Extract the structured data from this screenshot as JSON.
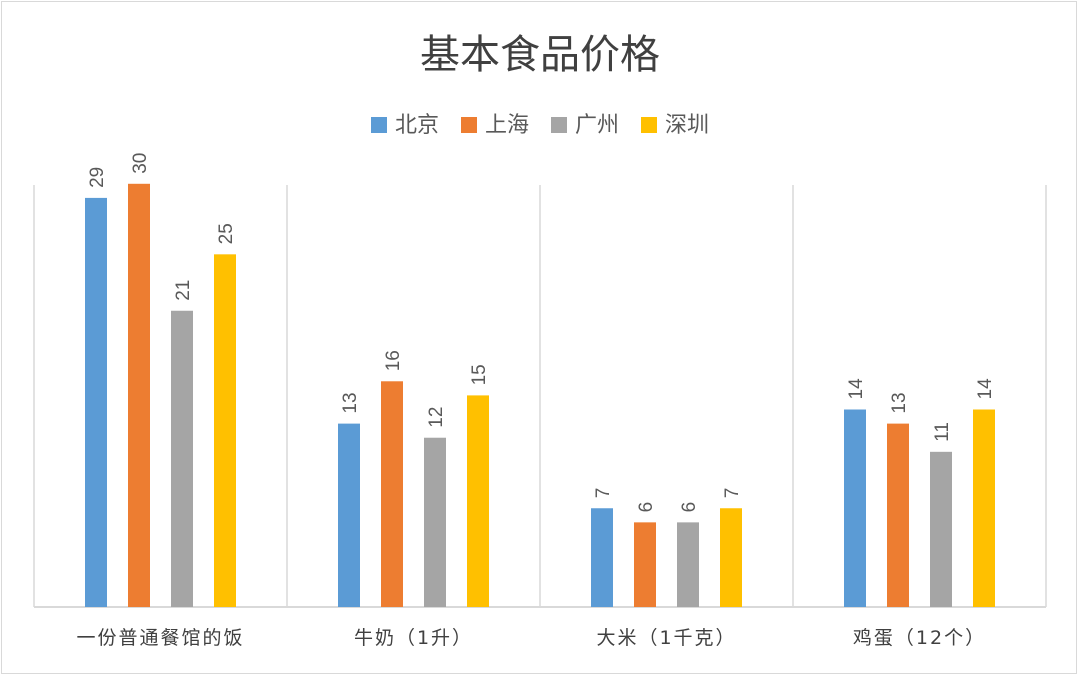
{
  "chart_data": {
    "type": "bar",
    "title": "基本食品价格",
    "categories": [
      "一份普通餐馆的饭",
      "牛奶（1升）",
      "大米（1千克）",
      "鸡蛋（12个）"
    ],
    "series": [
      {
        "name": "北京",
        "color": "#5b9bd5",
        "values": [
          29,
          13,
          7,
          14
        ]
      },
      {
        "name": "上海",
        "color": "#ed7d31",
        "values": [
          30,
          16,
          6,
          13
        ]
      },
      {
        "name": "广州",
        "color": "#a5a5a5",
        "values": [
          21,
          12,
          6,
          11
        ]
      },
      {
        "name": "深圳",
        "color": "#ffc000",
        "values": [
          25,
          15,
          7,
          14
        ]
      }
    ],
    "xlabel": "",
    "ylabel": "",
    "ylim": [
      0,
      35
    ],
    "legend_position": "top-center",
    "grid": "vertical-separators",
    "data_labels": true
  }
}
